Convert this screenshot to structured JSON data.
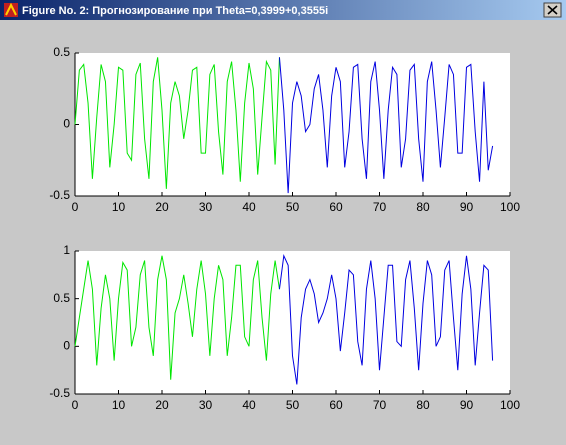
{
  "window": {
    "title": "Figure No. 2: Прогнозирование при Theta=0,3999+0,3555i"
  },
  "chart_data": [
    {
      "type": "line",
      "xlim": [
        0,
        100
      ],
      "ylim": [
        -0.5,
        0.5
      ],
      "xticks": [
        0,
        10,
        20,
        30,
        40,
        50,
        60,
        70,
        80,
        90,
        100
      ],
      "yticks": [
        -0.5,
        0,
        0.5
      ],
      "series": [
        {
          "color": "#00e600",
          "x": [
            0,
            1,
            2,
            3,
            4,
            5,
            6,
            7,
            8,
            9,
            10,
            11,
            12,
            13,
            14,
            15,
            16,
            17,
            18,
            19,
            20,
            21,
            22,
            23,
            24,
            25,
            26,
            27,
            28,
            29,
            30,
            31,
            32,
            33,
            34,
            35,
            36,
            37,
            38,
            39,
            40,
            41,
            42,
            43,
            44,
            45,
            46,
            47
          ],
          "values": [
            0,
            0.38,
            0.42,
            0.15,
            -0.38,
            0.05,
            0.42,
            0.3,
            -0.3,
            0,
            0.4,
            0.38,
            -0.2,
            -0.25,
            0.35,
            0.43,
            -0.1,
            -0.38,
            0.3,
            0.47,
            0.1,
            -0.45,
            0.15,
            0.3,
            0.2,
            -0.1,
            0.1,
            0.38,
            0.4,
            -0.2,
            -0.2,
            0.35,
            0.42,
            -0.05,
            -0.35,
            0.3,
            0.44,
            0.1,
            -0.4,
            0.15,
            0.43,
            0.25,
            -0.35,
            0.05,
            0.44,
            0.38,
            -0.28,
            0.47
          ]
        },
        {
          "color": "#0000e0",
          "x": [
            47,
            48,
            49,
            50,
            51,
            52,
            53,
            54,
            55,
            56,
            57,
            58,
            59,
            60,
            61,
            62,
            63,
            64,
            65,
            66,
            67,
            68,
            69,
            70,
            71,
            72,
            73,
            74,
            75,
            76,
            77,
            78,
            79,
            80,
            81,
            82,
            83,
            84,
            85,
            86,
            87,
            88,
            89,
            90,
            91,
            92,
            93,
            94,
            95,
            96
          ],
          "values": [
            0.47,
            0.1,
            -0.48,
            0.15,
            0.3,
            0.2,
            -0.05,
            0,
            0.25,
            0.35,
            0.1,
            -0.3,
            0.2,
            0.4,
            0.3,
            -0.3,
            -0.05,
            0.4,
            0.42,
            -0.1,
            -0.38,
            0.3,
            0.44,
            0.1,
            -0.38,
            0.1,
            0.4,
            0.35,
            -0.3,
            -0.1,
            0.38,
            0.42,
            -0.1,
            -0.4,
            0.3,
            0.44,
            0.1,
            -0.3,
            0.05,
            0.42,
            0.35,
            -0.2,
            -0.2,
            0.4,
            0.42,
            -0.05,
            -0.4,
            0.3,
            -0.32,
            -0.15
          ]
        }
      ]
    },
    {
      "type": "line",
      "xlim": [
        0,
        100
      ],
      "ylim": [
        -0.5,
        1
      ],
      "xticks": [
        0,
        10,
        20,
        30,
        40,
        50,
        60,
        70,
        80,
        90,
        100
      ],
      "yticks": [
        -0.5,
        0,
        0.5,
        1
      ],
      "series": [
        {
          "color": "#00e600",
          "x": [
            0,
            1,
            2,
            3,
            4,
            5,
            6,
            7,
            8,
            9,
            10,
            11,
            12,
            13,
            14,
            15,
            16,
            17,
            18,
            19,
            20,
            21,
            22,
            23,
            24,
            25,
            26,
            27,
            28,
            29,
            30,
            31,
            32,
            33,
            34,
            35,
            36,
            37,
            38,
            39,
            40,
            41,
            42,
            43,
            44,
            45,
            46,
            47
          ],
          "values": [
            0,
            0.3,
            0.6,
            0.9,
            0.6,
            -0.2,
            0.4,
            0.75,
            0.5,
            -0.15,
            0.5,
            0.88,
            0.8,
            0,
            0.2,
            0.75,
            0.9,
            0.2,
            -0.1,
            0.7,
            0.95,
            0.7,
            -0.35,
            0.35,
            0.5,
            0.75,
            0.45,
            0.1,
            0.6,
            0.9,
            0.55,
            -0.1,
            0.5,
            0.85,
            0.7,
            -0.1,
            0.3,
            0.85,
            0.85,
            0.1,
            0,
            0.7,
            0.9,
            0.3,
            -0.15,
            0.55,
            0.9,
            0.6
          ]
        },
        {
          "color": "#0000e0",
          "x": [
            47,
            48,
            49,
            50,
            51,
            52,
            53,
            54,
            55,
            56,
            57,
            58,
            59,
            60,
            61,
            62,
            63,
            64,
            65,
            66,
            67,
            68,
            69,
            70,
            71,
            72,
            73,
            74,
            75,
            76,
            77,
            78,
            79,
            80,
            81,
            82,
            83,
            84,
            85,
            86,
            87,
            88,
            89,
            90,
            91,
            92,
            93,
            94,
            95,
            96
          ],
          "values": [
            0.6,
            0.95,
            0.85,
            -0.1,
            -0.4,
            0.3,
            0.6,
            0.7,
            0.55,
            0.25,
            0.35,
            0.5,
            0.75,
            0.5,
            -0.05,
            0.35,
            0.8,
            0.75,
            0.05,
            -0.2,
            0.6,
            0.9,
            0.5,
            -0.25,
            0.3,
            0.85,
            0.85,
            0.05,
            0,
            0.7,
            0.9,
            0.4,
            -0.25,
            0.45,
            0.9,
            0.75,
            0,
            0.1,
            0.8,
            0.9,
            0.3,
            -0.25,
            0.55,
            0.95,
            0.6,
            -0.2,
            0.35,
            0.85,
            0.8,
            -0.15
          ]
        }
      ]
    }
  ]
}
